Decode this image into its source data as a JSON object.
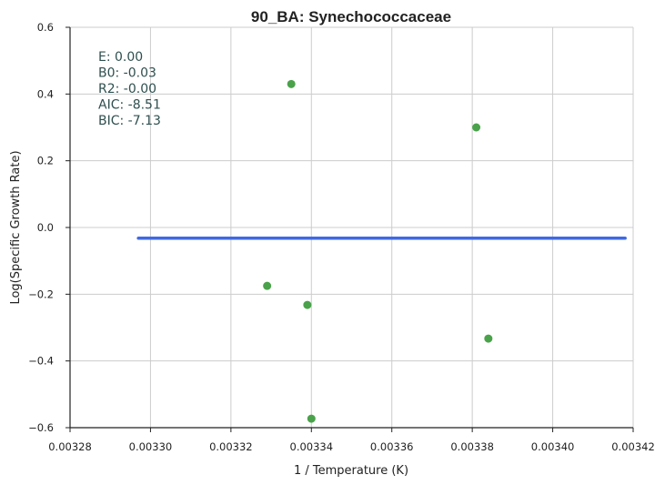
{
  "chart_data": {
    "type": "scatter",
    "title": "90_BA: Synechococcaceae",
    "xlabel": "1 / Temperature (K)",
    "ylabel": "Log(Specific Growth Rate)",
    "xlim": [
      0.00328,
      0.00342
    ],
    "ylim": [
      -0.6,
      0.6
    ],
    "x_ticks": [
      "0.00328",
      "0.00330",
      "0.00332",
      "0.00334",
      "0.00336",
      "0.00338",
      "0.00340",
      "0.00342"
    ],
    "x_tick_values": [
      0.00328,
      0.0033,
      0.00332,
      0.00334,
      0.00336,
      0.00338,
      0.0034,
      0.00342
    ],
    "y_ticks": [
      "0.6",
      "0.4",
      "0.2",
      "0.0",
      "−0.2",
      "−0.4",
      "−0.6"
    ],
    "y_tick_values": [
      0.6,
      0.4,
      0.2,
      0.0,
      -0.2,
      -0.4,
      -0.6
    ],
    "grid": true,
    "points": {
      "color": "#4aa24a",
      "x": [
        0.003335,
        0.003381,
        0.003329,
        0.003339,
        0.003384,
        0.00334
      ],
      "y": [
        0.43,
        0.3,
        -0.175,
        -0.232,
        -0.333,
        -0.573
      ]
    },
    "fit_line": {
      "color": "#4169e1",
      "x": [
        0.003297,
        0.003418
      ],
      "y": [
        -0.032,
        -0.032
      ]
    },
    "annotations": [
      "E:  0.00",
      "B0:  -0.03",
      "R2:  -0.00",
      "AIC: -8.51",
      "BIC: -7.13"
    ]
  }
}
